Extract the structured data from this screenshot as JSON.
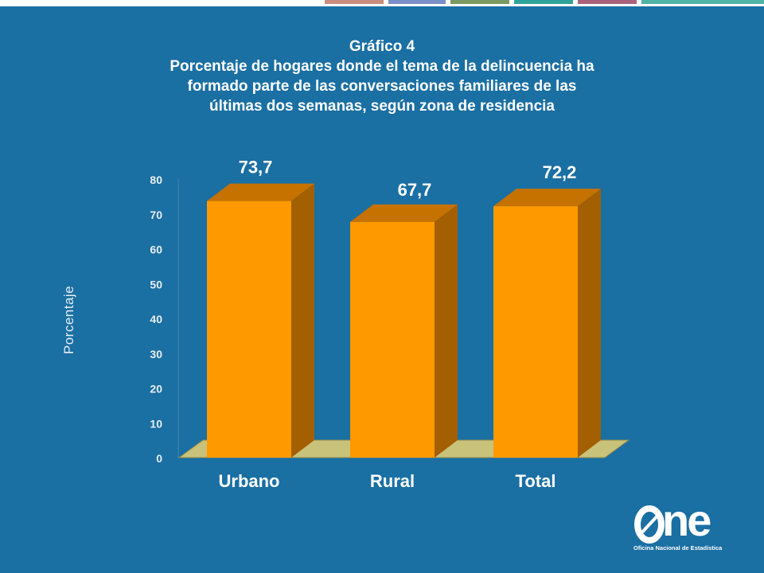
{
  "title": {
    "line1": "Gráfico 4",
    "line2": "Porcentaje de hogares donde el tema de la delincuencia ha",
    "line3": "formado parte de las conversaciones familiares de las",
    "line4": "últimas dos semanas, según zona de residencia"
  },
  "colors": {
    "background": "#1a6fa3",
    "bar_front": "#ff9900",
    "bar_side": "#a35f00",
    "bar_top": "#c57200",
    "floor": "#c9c27a"
  },
  "chart_data": {
    "type": "bar",
    "title": "Gráfico 4 Porcentaje de hogares donde el tema de la delincuencia ha formado parte de las conversaciones familiares de las últimas dos semanas, según zona de residencia",
    "categories": [
      "Urbano",
      "Rural",
      "Total"
    ],
    "values": [
      73.7,
      67.7,
      72.2
    ],
    "data_labels": [
      "73,7",
      "67,7",
      "72,2"
    ],
    "ylabel": "Porcentaje",
    "xlabel": "",
    "ylim": [
      0,
      80
    ],
    "yticks": [
      "0",
      "10",
      "20",
      "30",
      "40",
      "50",
      "60",
      "70",
      "80"
    ],
    "grid": false,
    "legend": "none",
    "style": "3d-bar"
  },
  "logo": {
    "word": "ne",
    "subtitle": "Oficina Nacional de Estadística"
  }
}
